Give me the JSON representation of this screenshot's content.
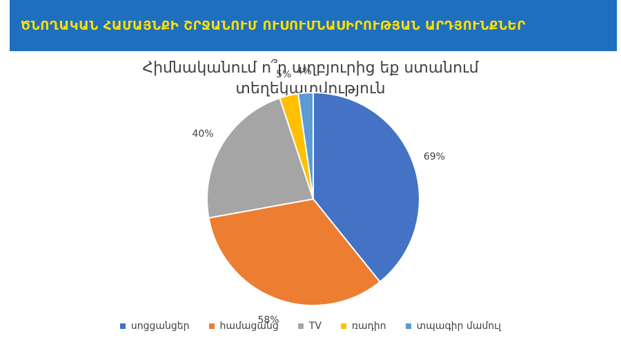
{
  "banner": {
    "title": "ԾՆՈՂԱԿԱՆ ՀԱՄԱՅՆՔԻ ՇՐՋԱՆՈՒՄ ՈՒՍՈՒՄՆԱՍԻՐՈՒԹՅԱՆ ԱՐԴՅՈՒՆՔՆԵՐ",
    "background": "#1f6fbf",
    "text_color": "#ffe000"
  },
  "chart_data": {
    "type": "pie",
    "title_lines": [
      "Հիմնականում ո՞ր աղբյուրից եք ստանում",
      "տեղեկատվություն"
    ],
    "categories": [
      "սոցցանցեր",
      "համացանց",
      "TV",
      "ռադիո",
      "տպագիր մամուլ"
    ],
    "values": [
      69,
      58,
      40,
      5,
      4
    ],
    "labels": [
      "69%",
      "58%",
      "40%",
      "5%",
      "4%"
    ],
    "colors": [
      "#4472c4",
      "#ed7d31",
      "#a5a5a5",
      "#ffc000",
      "#5b9bd5"
    ],
    "legend_position": "bottom"
  }
}
